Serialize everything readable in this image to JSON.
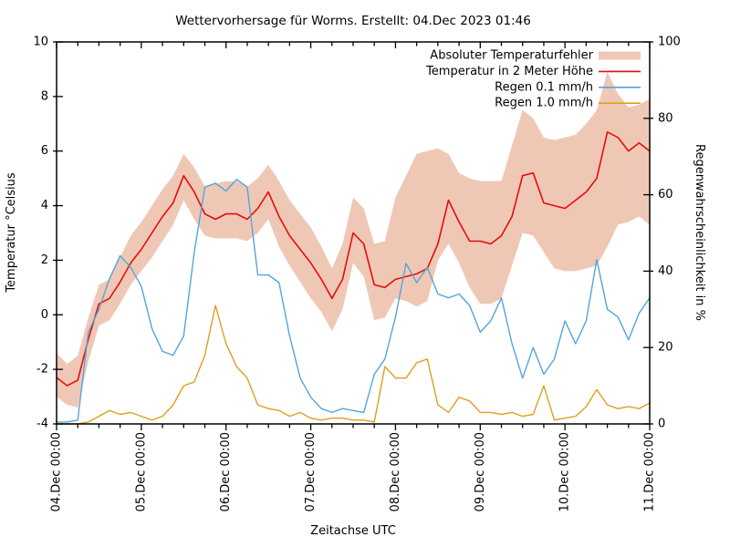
{
  "title": "Wettervorhersage für Worms. Erstellt: 04.Dec 2023 01:46",
  "axes": {
    "x_label": "Zeitachse UTC",
    "y_left_label": "Temperatur °Celsius",
    "y_right_label": "Regenwahrscheinlichkeit in %",
    "x_tick_labels": [
      "04.Dec 00:00",
      "05.Dec 00:00",
      "06.Dec 00:00",
      "07.Dec 00:00",
      "08.Dec 00:00",
      "09.Dec 00:00",
      "10.Dec 00:00",
      "11.Dec 00:00"
    ],
    "y_left_ticks": [
      10,
      8,
      6,
      4,
      2,
      0,
      -2,
      -4
    ],
    "y_right_ticks": [
      100,
      80,
      60,
      40,
      20,
      0
    ],
    "x_minor_tick_hours": 6
  },
  "legend": [
    {
      "label": "Absoluter Temperaturfehler",
      "style": "band",
      "color": "#efc8b5"
    },
    {
      "label": "Temperatur in 2 Meter Höhe",
      "style": "line",
      "color": "#e60c0c"
    },
    {
      "label": "Regen 0.1 mm/h",
      "style": "line",
      "color": "#55a4dc"
    },
    {
      "label": "Regen 1.0 mm/h",
      "style": "line",
      "color": "#df9f1f"
    }
  ],
  "colors": {
    "band": "#efc8b5",
    "temperature": "#e60c0c",
    "rain_01": "#55a4dc",
    "rain_10": "#df9f1f",
    "frame": "#000000",
    "background": "#ffffff"
  },
  "chart_data": {
    "type": "line",
    "title": "Wettervorhersage für Worms. Erstellt: 04.Dec 2023 01:46",
    "xlabel": "Zeitachse UTC",
    "ylabel_left": "Temperatur °Celsius",
    "ylabel_right": "Regenwahrscheinlichkeit in %",
    "grid": false,
    "legend_position": "top-right-inside",
    "x_hours_range": [
      0,
      168
    ],
    "x_hours_step": 3,
    "x_start": "04.Dec 2023 00:00 UTC",
    "x_end": "11.Dec 2023 00:00 UTC",
    "y_left_range": [
      -4,
      10
    ],
    "y_right_range": [
      0,
      100
    ],
    "series": [
      {
        "name": "Absoluter Temperaturfehler",
        "axis": "left",
        "style": "band",
        "color": "#efc8b5",
        "upper": [
          -1.4,
          -1.8,
          -1.5,
          -0.1,
          1.1,
          1.3,
          2.1,
          2.9,
          3.4,
          4.0,
          4.6,
          5.1,
          5.9,
          5.4,
          4.7,
          4.8,
          4.9,
          4.9,
          4.7,
          5.0,
          5.5,
          4.9,
          4.2,
          3.7,
          3.2,
          2.5,
          1.7,
          2.6,
          4.3,
          3.9,
          2.6,
          2.7,
          4.3,
          5.1,
          5.9,
          6.0,
          6.1,
          5.9,
          5.2,
          5.0,
          4.9,
          4.9,
          4.9,
          6.2,
          7.5,
          7.2,
          6.5,
          6.4,
          6.5,
          6.6,
          7.0,
          7.5,
          8.9,
          8.1,
          7.6,
          7.7,
          7.9
        ],
        "lower": [
          -3.0,
          -3.3,
          -3.4,
          -1.7,
          -0.4,
          -0.2,
          0.4,
          1.1,
          1.6,
          2.1,
          2.7,
          3.3,
          4.2,
          3.5,
          2.9,
          2.8,
          2.8,
          2.8,
          2.7,
          3.0,
          3.5,
          2.5,
          1.8,
          1.2,
          0.6,
          0.1,
          -0.6,
          0.2,
          1.9,
          1.4,
          -0.2,
          -0.1,
          0.6,
          0.5,
          0.3,
          0.5,
          2.0,
          2.6,
          1.9,
          1.0,
          0.4,
          0.4,
          0.6,
          1.8,
          3.0,
          2.9,
          2.3,
          1.7,
          1.6,
          1.6,
          1.7,
          1.8,
          2.5,
          3.3,
          3.4,
          3.6,
          3.3
        ]
      },
      {
        "name": "Temperatur in 2 Meter Höhe",
        "axis": "left",
        "style": "line",
        "color": "#e60c0c",
        "values": [
          -2.3,
          -2.6,
          -2.4,
          -0.9,
          0.4,
          0.6,
          1.2,
          1.9,
          2.4,
          3.0,
          3.6,
          4.1,
          5.1,
          4.5,
          3.7,
          3.5,
          3.7,
          3.7,
          3.5,
          3.9,
          4.5,
          3.6,
          2.9,
          2.4,
          1.9,
          1.3,
          0.6,
          1.3,
          3.0,
          2.6,
          1.1,
          1.0,
          1.3,
          1.4,
          1.5,
          1.7,
          2.6,
          4.2,
          3.4,
          2.7,
          2.7,
          2.6,
          2.9,
          3.6,
          5.1,
          5.2,
          4.1,
          4.0,
          3.9,
          4.2,
          4.5,
          5.0,
          6.7,
          6.5,
          6.0,
          6.3,
          6.0
        ]
      },
      {
        "name": "Regen 0.1 mm/h",
        "axis": "right",
        "style": "line",
        "color": "#55a4dc",
        "values": [
          0.5,
          0.5,
          1,
          24,
          30,
          38,
          44,
          41,
          36,
          25,
          19,
          18,
          23,
          45,
          62,
          63,
          61,
          64,
          62,
          39,
          39,
          37,
          23,
          12,
          7,
          4,
          3,
          4,
          3.5,
          3,
          13,
          17,
          28,
          42,
          37,
          41,
          34,
          33,
          34,
          31,
          24,
          27,
          33,
          21,
          12,
          20,
          13,
          17,
          27,
          21,
          27,
          43,
          30,
          28,
          22,
          29,
          33
        ]
      },
      {
        "name": "Regen 1.0 mm/h",
        "axis": "right",
        "style": "line",
        "color": "#df9f1f",
        "values": [
          0,
          0,
          0,
          0.5,
          2,
          3.5,
          2.5,
          3,
          2,
          1,
          2,
          5,
          10,
          11,
          18,
          31,
          21,
          15,
          12,
          5,
          4,
          3.5,
          2,
          3,
          1.5,
          1,
          1.5,
          1.5,
          1,
          1,
          0.5,
          15,
          12,
          12,
          16,
          17,
          5,
          3,
          7,
          6,
          3,
          3,
          2.5,
          3,
          2,
          2.5,
          10,
          1,
          1.5,
          2,
          4.5,
          9,
          5,
          4,
          4.5,
          4,
          5.5
        ]
      }
    ]
  }
}
